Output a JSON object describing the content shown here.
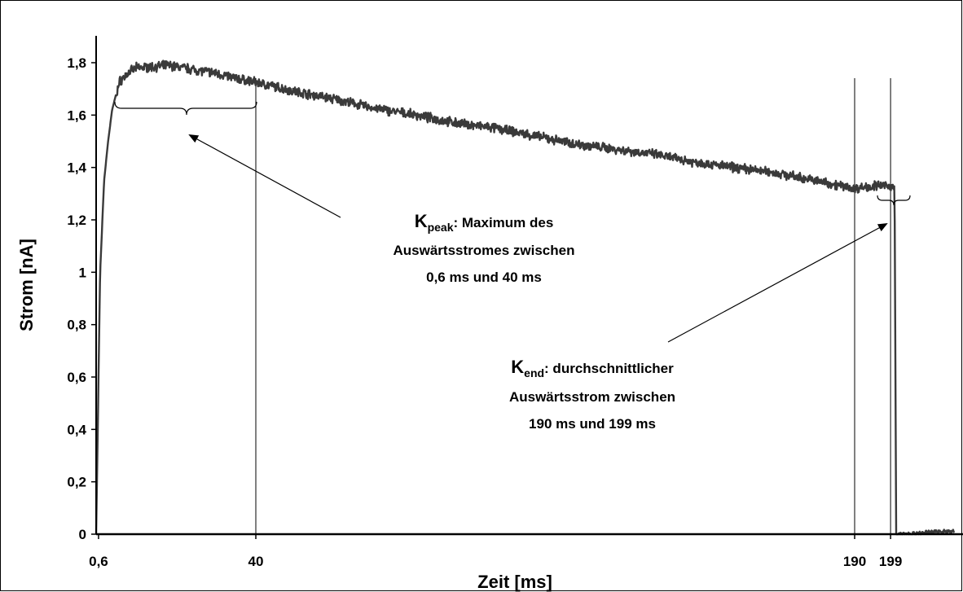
{
  "chart_data": {
    "type": "line",
    "xlabel": "Zeit [ms]",
    "ylabel": "Strom [nA]",
    "ylim": [
      0,
      1.9
    ],
    "xlim": [
      0,
      215
    ],
    "grid": false,
    "x_ticks": [
      {
        "value": 0.6,
        "label": "0,6"
      },
      {
        "value": 40,
        "label": "40"
      },
      {
        "value": 190,
        "label": "190"
      },
      {
        "value": 199,
        "label": "199"
      }
    ],
    "y_ticks": [
      {
        "value": 0,
        "label": "0"
      },
      {
        "value": 0.2,
        "label": "0,2"
      },
      {
        "value": 0.4,
        "label": "0,4"
      },
      {
        "value": 0.6,
        "label": "0,6"
      },
      {
        "value": 0.8,
        "label": "0,8"
      },
      {
        "value": 1.0,
        "label": "1"
      },
      {
        "value": 1.2,
        "label": "1,2"
      },
      {
        "value": 1.4,
        "label": "1,4"
      },
      {
        "value": 1.6,
        "label": "1,6"
      },
      {
        "value": 1.8,
        "label": "1,8"
      }
    ],
    "series": [
      {
        "color": "#3a3a3a",
        "points": [
          [
            0,
            0.0
          ],
          [
            1.0,
            1.0
          ],
          [
            2.0,
            1.35
          ],
          [
            3.0,
            1.5
          ],
          [
            4.0,
            1.62
          ],
          [
            5.0,
            1.68
          ],
          [
            6.0,
            1.73
          ],
          [
            8.0,
            1.76
          ],
          [
            10.0,
            1.78
          ],
          [
            15.0,
            1.785
          ],
          [
            18.0,
            1.79
          ],
          [
            22.0,
            1.78
          ],
          [
            26.0,
            1.77
          ],
          [
            30.0,
            1.76
          ],
          [
            35.0,
            1.74
          ],
          [
            40.0,
            1.725
          ],
          [
            50.0,
            1.69
          ],
          [
            60.0,
            1.66
          ],
          [
            70.0,
            1.625
          ],
          [
            80.0,
            1.6
          ],
          [
            90.0,
            1.57
          ],
          [
            100.0,
            1.55
          ],
          [
            110.0,
            1.52
          ],
          [
            120.0,
            1.49
          ],
          [
            130.0,
            1.47
          ],
          [
            140.0,
            1.45
          ],
          [
            150.0,
            1.42
          ],
          [
            160.0,
            1.4
          ],
          [
            170.0,
            1.38
          ],
          [
            180.0,
            1.35
          ],
          [
            185.0,
            1.335
          ],
          [
            190.0,
            1.32
          ],
          [
            195.0,
            1.33
          ],
          [
            199.0,
            1.33
          ],
          [
            200.0,
            1.32
          ],
          [
            200.4,
            0.0
          ],
          [
            205.0,
            0.0
          ],
          [
            210.0,
            0.01
          ],
          [
            215.0,
            0.01
          ]
        ]
      }
    ],
    "markers": [
      {
        "x": 40
      },
      {
        "x": 190
      },
      {
        "x": 199
      }
    ],
    "annotations": [
      {
        "name": "kpeak",
        "symbol": "K",
        "subscript": "peak",
        "heading": ": Maximum des",
        "lines": [
          "Auswärtsstromes zwischen",
          "0,6 ms und 40 ms"
        ]
      },
      {
        "name": "kend",
        "symbol": "K",
        "subscript": "end",
        "heading": ": durchschnittlicher",
        "lines": [
          "Auswärtsstrom zwischen",
          "190 ms und 199 ms"
        ]
      }
    ]
  }
}
